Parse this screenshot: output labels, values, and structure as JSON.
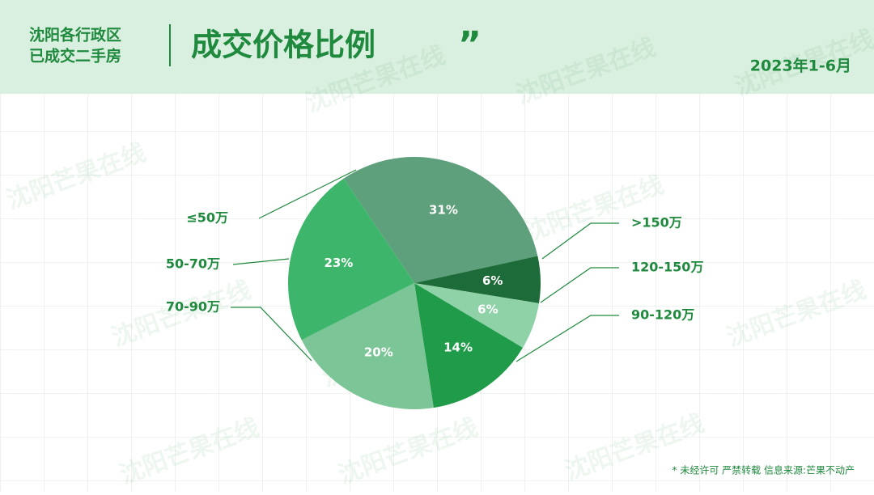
{
  "header": {
    "subtitle_line1": "沈阳各行政区",
    "subtitle_line2": "已成交二手房",
    "title_mark": "”",
    "date": "2023年1-6月"
  },
  "watermark": "沈阳芒果在线",
  "footer": "* 未经许可 严禁转载 信息来源:芒果不动产",
  "chart_data": {
    "type": "pie",
    "title": "成交价格比例",
    "categories": [
      "≤50万",
      ">150万",
      "120-150万",
      "90-120万",
      "70-90万",
      "50-70万"
    ],
    "values": [
      31,
      6,
      6,
      14,
      20,
      23
    ],
    "value_labels": [
      "31%",
      "6%",
      "6%",
      "14%",
      "20%",
      "23%"
    ],
    "colors": [
      "#5ea07b",
      "#1c6b38",
      "#8fd2a8",
      "#1f9b49",
      "#7cc596",
      "#3db56b"
    ]
  }
}
